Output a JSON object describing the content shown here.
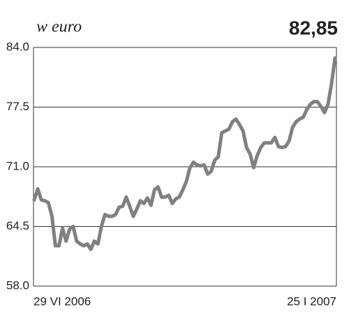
{
  "chart_data": {
    "type": "line",
    "title": "w euro",
    "categories": [
      "29 VI 2006",
      null,
      null,
      null,
      null,
      null,
      null,
      null,
      null,
      null,
      null,
      null,
      null,
      null,
      null,
      null,
      null,
      null,
      null,
      null,
      null,
      null,
      null,
      null,
      null,
      null,
      null,
      null,
      null,
      null,
      null,
      null,
      null,
      null,
      null,
      null,
      null,
      null,
      null,
      null,
      null,
      null,
      null,
      null,
      null,
      null,
      null,
      null,
      null,
      null,
      null,
      null,
      null,
      null,
      null,
      null,
      null,
      null,
      null,
      null,
      null,
      null,
      null,
      null,
      null,
      null,
      null,
      null,
      null,
      null,
      null,
      null,
      null,
      null,
      null,
      null,
      null,
      null,
      null,
      null,
      null,
      null,
      null,
      null,
      null,
      "25 I 2007"
    ],
    "values": [
      67.4,
      68.6,
      67.4,
      67.3,
      67.1,
      65.6,
      62.4,
      62.4,
      64.3,
      62.9,
      64.2,
      64.5,
      62.9,
      62.6,
      62.4,
      62.6,
      62.0,
      62.9,
      62.6,
      64.5,
      65.8,
      65.6,
      65.6,
      65.8,
      66.6,
      66.7,
      67.7,
      66.7,
      65.6,
      66.4,
      67.3,
      67.0,
      67.6,
      66.8,
      68.5,
      68.8,
      67.7,
      67.7,
      67.9,
      67.0,
      67.5,
      67.7,
      68.5,
      69.4,
      70.9,
      71.5,
      71.2,
      71.1,
      71.2,
      70.2,
      70.5,
      71.7,
      72.1,
      74.7,
      74.9,
      75.1,
      75.9,
      76.2,
      75.6,
      74.9,
      73.1,
      72.4,
      70.9,
      72.2,
      73.1,
      73.6,
      73.6,
      73.6,
      74.2,
      73.2,
      73.1,
      73.2,
      73.8,
      75.3,
      75.9,
      76.2,
      76.4,
      77.2,
      77.8,
      78.1,
      78.1,
      77.6,
      76.9,
      77.8,
      80.0,
      82.85
    ],
    "value_labels": [
      null,
      null,
      null,
      null,
      null,
      null,
      null,
      null,
      null,
      null,
      null,
      null,
      null,
      null,
      null,
      null,
      null,
      null,
      null,
      null,
      null,
      null,
      null,
      null,
      null,
      null,
      null,
      null,
      null,
      null,
      null,
      null,
      null,
      null,
      null,
      null,
      null,
      null,
      null,
      null,
      null,
      null,
      null,
      null,
      null,
      null,
      null,
      null,
      null,
      null,
      null,
      null,
      null,
      null,
      null,
      null,
      null,
      null,
      null,
      null,
      null,
      null,
      null,
      null,
      null,
      null,
      null,
      null,
      null,
      null,
      null,
      null,
      null,
      null,
      null,
      null,
      null,
      null,
      null,
      null,
      null,
      null,
      null,
      null,
      null,
      "82,85"
    ],
    "color": "#808080",
    "ylim": [
      58.0,
      84.0
    ],
    "yticks": [
      {
        "value": 58.0,
        "label": "58.0"
      },
      {
        "value": 64.5,
        "label": "64.5"
      },
      {
        "value": 71.0,
        "label": "71.0"
      },
      {
        "value": 77.5,
        "label": "77.5"
      },
      {
        "value": 84.0,
        "label": "84.0"
      }
    ],
    "grid": true
  }
}
